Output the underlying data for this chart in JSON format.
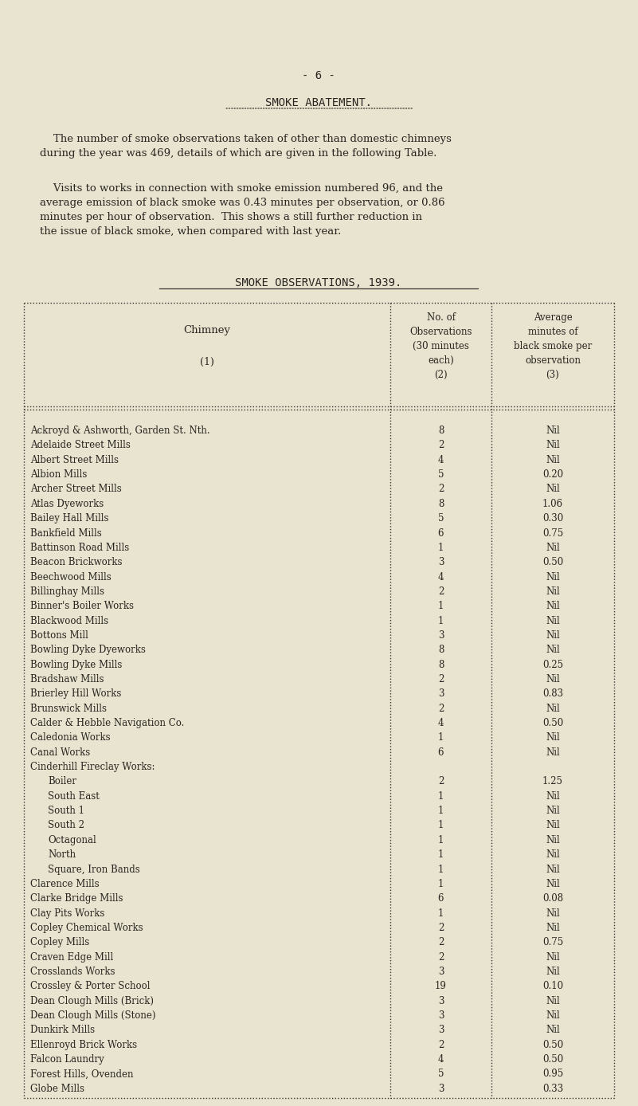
{
  "page_number": "- 6 -",
  "section_title": "SMOKE ABATEMENT.",
  "para1_lines": [
    "    The number of smoke observations taken of other than domestic chimneys",
    "during the year was 469, details of which are given in the following Table."
  ],
  "para2_lines": [
    "    Visits to works in connection with smoke emission numbered 96, and the",
    "average emission of black smoke was 0.43 minutes per observation, or 0.86",
    "minutes per hour of observation.  This shows a still further reduction in",
    "the issue of black smoke, when compared with last year."
  ],
  "table_title": "SMOKE OBSERVATIONS, 1939.",
  "col_headers": [
    [
      "Chimney",
      "",
      "",
      "(1)"
    ],
    [
      "No. of",
      "Observations",
      "(30 minutes",
      "each)",
      "(2)"
    ],
    [
      "Average",
      "minutes of",
      "black smoke per",
      "observation",
      "(3)"
    ]
  ],
  "rows": [
    [
      "Ackroyd & Ashworth, Garden St. Nth.",
      "8",
      "Nil"
    ],
    [
      "Adelaide Street Mills",
      "2",
      "Nil"
    ],
    [
      "Albert Street Mills",
      "4",
      "Nil"
    ],
    [
      "Albion Mills",
      "5",
      "0.20"
    ],
    [
      "Archer Street Mills",
      "2",
      "Nil"
    ],
    [
      "Atlas Dyeworks",
      "8",
      "1.06"
    ],
    [
      "Bailey Hall Mills",
      "5",
      "0.30"
    ],
    [
      "Bankfield Mills",
      "6",
      "0.75"
    ],
    [
      "Battinson Road Mills",
      "1",
      "Nil"
    ],
    [
      "Beacon Brickworks",
      "3",
      "0.50"
    ],
    [
      "Beechwood Mills",
      "4",
      "Nil"
    ],
    [
      "Billinghay Mills",
      "2",
      "Nil"
    ],
    [
      "Binner's Boiler Works",
      "1",
      "Nil"
    ],
    [
      "Blackwood Mills",
      "1",
      "Nil"
    ],
    [
      "Bottons Mill",
      "3",
      "Nil"
    ],
    [
      "Bowling Dyke Dyeworks",
      "8",
      "Nil"
    ],
    [
      "Bowling Dyke Mills",
      "8",
      "0.25"
    ],
    [
      "Bradshaw Mills",
      "2",
      "Nil"
    ],
    [
      "Brierley Hill Works",
      "3",
      "0.83"
    ],
    [
      "Brunswick Mills",
      "2",
      "Nil"
    ],
    [
      "Calder & Hebble Navigation Co.",
      "4",
      "0.50"
    ],
    [
      "Caledonia Works",
      "1",
      "Nil"
    ],
    [
      "Canal Works",
      "6",
      "Nil"
    ],
    [
      "Cinderhill Fireclay Works:",
      "",
      ""
    ],
    [
      "  Boiler",
      "2",
      "1.25"
    ],
    [
      "  South East",
      "1",
      "Nil"
    ],
    [
      "  South 1",
      "1",
      "Nil"
    ],
    [
      "  South 2",
      "1",
      "Nil"
    ],
    [
      "  Octagonal",
      "1",
      "Nil"
    ],
    [
      "  North",
      "1",
      "Nil"
    ],
    [
      "  Square, Iron Bands",
      "1",
      "Nil"
    ],
    [
      "Clarence Mills",
      "1",
      "Nil"
    ],
    [
      "Clarke Bridge Mills",
      "6",
      "0.08"
    ],
    [
      "Clay Pits Works",
      "1",
      "Nil"
    ],
    [
      "Copley Chemical Works",
      "2",
      "Nil"
    ],
    [
      "Copley Mills",
      "2",
      "0.75"
    ],
    [
      "Craven Edge Mill",
      "2",
      "Nil"
    ],
    [
      "Crosslands Works",
      "3",
      "Nil"
    ],
    [
      "Crossley & Porter School",
      "19",
      "0.10"
    ],
    [
      "Dean Clough Mills (Brick)",
      "3",
      "Nil"
    ],
    [
      "Dean Clough Mills (Stone)",
      "3",
      "Nil"
    ],
    [
      "Dunkirk Mills",
      "3",
      "Nil"
    ],
    [
      "Ellenroyd Brick Works",
      "2",
      "0.50"
    ],
    [
      "Falcon Laundry",
      "4",
      "0.50"
    ],
    [
      "Forest Hills, Ovenden",
      "5",
      "0.95"
    ],
    [
      "Globe Mills",
      "3",
      "0.33"
    ]
  ],
  "bg_color": "#e8e4d0",
  "text_color": "#2a2520",
  "line_color": "#3a3530"
}
